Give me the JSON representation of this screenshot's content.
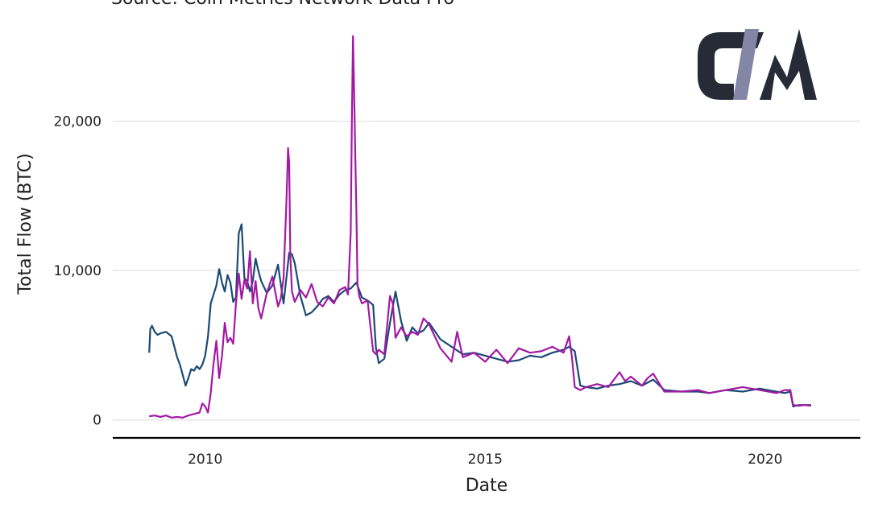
{
  "source": "Source: Coin Metrics Network Data Pro",
  "logo_text": "CM",
  "chart_data": {
    "type": "line",
    "xlabel": "Date",
    "ylabel": "Total Flow (BTC)",
    "xlim": [
      2008.35,
      2021.7
    ],
    "ylim": [
      -1200,
      26500
    ],
    "x_ticks": [
      2010,
      2015,
      2020
    ],
    "x_tick_labels": [
      "2010",
      "2015",
      "2020"
    ],
    "y_ticks": [
      0,
      10000,
      20000
    ],
    "y_tick_labels": [
      "0",
      "10,000",
      "20,000"
    ],
    "grid": "horizontal",
    "colors": {
      "series1": "#1b4a73",
      "series2": "#a319a4",
      "axis": "#000000",
      "grid": "#e6e6e6"
    },
    "series": [
      {
        "color": "#1b4a73",
        "x": [
          2009.0,
          2009.02,
          2009.05,
          2009.1,
          2009.15,
          2009.2,
          2009.3,
          2009.4,
          2009.5,
          2009.55,
          2009.6,
          2009.65,
          2009.7,
          2009.75,
          2009.8,
          2009.85,
          2009.9,
          2009.95,
          2010.0,
          2010.05,
          2010.1,
          2010.15,
          2010.2,
          2010.25,
          2010.3,
          2010.35,
          2010.4,
          2010.45,
          2010.5,
          2010.55,
          2010.6,
          2010.65,
          2010.7,
          2010.75,
          2010.8,
          2010.85,
          2010.9,
          2010.95,
          2011.0,
          2011.1,
          2011.2,
          2011.3,
          2011.4,
          2011.45,
          2011.5,
          2011.55,
          2011.6,
          2011.7,
          2011.8,
          2011.9,
          2012.0,
          2012.1,
          2012.2,
          2012.3,
          2012.4,
          2012.5,
          2012.6,
          2012.7,
          2012.8,
          2012.9,
          2013.0,
          2013.05,
          2013.1,
          2013.2,
          2013.3,
          2013.4,
          2013.5,
          2013.6,
          2013.7,
          2013.8,
          2013.9,
          2014.0,
          2014.2,
          2014.4,
          2014.6,
          2014.8,
          2015.0,
          2015.2,
          2015.4,
          2015.6,
          2015.8,
          2016.0,
          2016.2,
          2016.4,
          2016.5,
          2016.6,
          2016.7,
          2016.8,
          2017.0,
          2017.2,
          2017.4,
          2017.6,
          2017.8,
          2018.0,
          2018.2,
          2018.5,
          2018.8,
          2019.0,
          2019.3,
          2019.6,
          2019.9,
          2020.2,
          2020.35,
          2020.45,
          2020.5,
          2020.6,
          2020.7,
          2020.82
        ],
        "y": [
          4500,
          6100,
          6300,
          5900,
          5700,
          5800,
          5900,
          5600,
          4200,
          3700,
          3000,
          2300,
          2800,
          3400,
          3300,
          3600,
          3400,
          3700,
          4300,
          5600,
          7800,
          8400,
          9000,
          10100,
          9200,
          8600,
          9700,
          9200,
          7900,
          8200,
          12500,
          13100,
          9500,
          9300,
          8600,
          9300,
          10800,
          10000,
          9300,
          8500,
          9000,
          10400,
          7800,
          9500,
          11200,
          11100,
          10500,
          8300,
          7000,
          7200,
          7600,
          8100,
          8300,
          7900,
          8400,
          8700,
          8800,
          9200,
          8200,
          8000,
          7700,
          4800,
          3800,
          4100,
          6500,
          8600,
          6600,
          5300,
          6200,
          5800,
          6000,
          6500,
          5400,
          4900,
          4400,
          4500,
          4300,
          4100,
          3900,
          4000,
          4300,
          4200,
          4500,
          4700,
          4900,
          4600,
          2300,
          2200,
          2100,
          2300,
          2400,
          2600,
          2300,
          2700,
          2000,
          1900,
          1900,
          1800,
          2000,
          1900,
          2100,
          1900,
          1800,
          1900,
          900,
          1000,
          1000,
          1000
        ]
      },
      {
        "color": "#a319a4",
        "x": [
          2009.0,
          2009.1,
          2009.2,
          2009.3,
          2009.4,
          2009.5,
          2009.6,
          2009.7,
          2009.8,
          2009.9,
          2009.95,
          2010.0,
          2010.05,
          2010.1,
          2010.15,
          2010.2,
          2010.25,
          2010.3,
          2010.35,
          2010.4,
          2010.45,
          2010.5,
          2010.55,
          2010.6,
          2010.65,
          2010.7,
          2010.75,
          2010.8,
          2010.85,
          2010.9,
          2010.95,
          2011.0,
          2011.1,
          2011.2,
          2011.3,
          2011.35,
          2011.4,
          2011.45,
          2011.48,
          2011.5,
          2011.52,
          2011.55,
          2011.6,
          2011.7,
          2011.8,
          2011.9,
          2012.0,
          2012.1,
          2012.2,
          2012.3,
          2012.4,
          2012.5,
          2012.55,
          2012.6,
          2012.62,
          2012.64,
          2012.66,
          2012.68,
          2012.7,
          2012.72,
          2012.75,
          2012.8,
          2012.9,
          2013.0,
          2013.05,
          2013.1,
          2013.2,
          2013.3,
          2013.35,
          2013.4,
          2013.5,
          2013.6,
          2013.7,
          2013.8,
          2013.9,
          2014.0,
          2014.2,
          2014.4,
          2014.5,
          2014.6,
          2014.8,
          2015.0,
          2015.2,
          2015.4,
          2015.6,
          2015.8,
          2016.0,
          2016.2,
          2016.4,
          2016.5,
          2016.55,
          2016.6,
          2016.7,
          2016.8,
          2017.0,
          2017.2,
          2017.4,
          2017.5,
          2017.6,
          2017.8,
          2017.9,
          2018.0,
          2018.2,
          2018.5,
          2018.8,
          2019.0,
          2019.3,
          2019.6,
          2019.9,
          2020.2,
          2020.35,
          2020.45,
          2020.5,
          2020.6,
          2020.7,
          2020.82
        ],
        "y": [
          250,
          300,
          200,
          300,
          150,
          200,
          150,
          300,
          400,
          500,
          1100,
          900,
          500,
          1800,
          3800,
          5300,
          2800,
          4300,
          6500,
          5200,
          5500,
          5100,
          7800,
          9800,
          8100,
          9400,
          8800,
          11300,
          7800,
          9300,
          7500,
          6800,
          8500,
          9600,
          7600,
          8100,
          9500,
          14500,
          18200,
          17200,
          11000,
          8600,
          7900,
          8700,
          8200,
          9100,
          7900,
          7600,
          8200,
          7800,
          8700,
          8900,
          8400,
          12600,
          20000,
          25700,
          22000,
          17800,
          14000,
          9100,
          8300,
          7800,
          8000,
          4600,
          4400,
          4700,
          4400,
          8300,
          7800,
          5500,
          6200,
          5600,
          5900,
          5700,
          6800,
          6400,
          4800,
          3900,
          5900,
          4200,
          4500,
          3900,
          4700,
          3800,
          4800,
          4500,
          4600,
          4900,
          4500,
          5600,
          4200,
          2200,
          2000,
          2200,
          2400,
          2200,
          3200,
          2600,
          2900,
          2300,
          2800,
          3100,
          1900,
          1900,
          2000,
          1800,
          2000,
          2200,
          2000,
          1800,
          2000,
          2000,
          1000,
          950,
          1000,
          950
        ]
      }
    ]
  }
}
